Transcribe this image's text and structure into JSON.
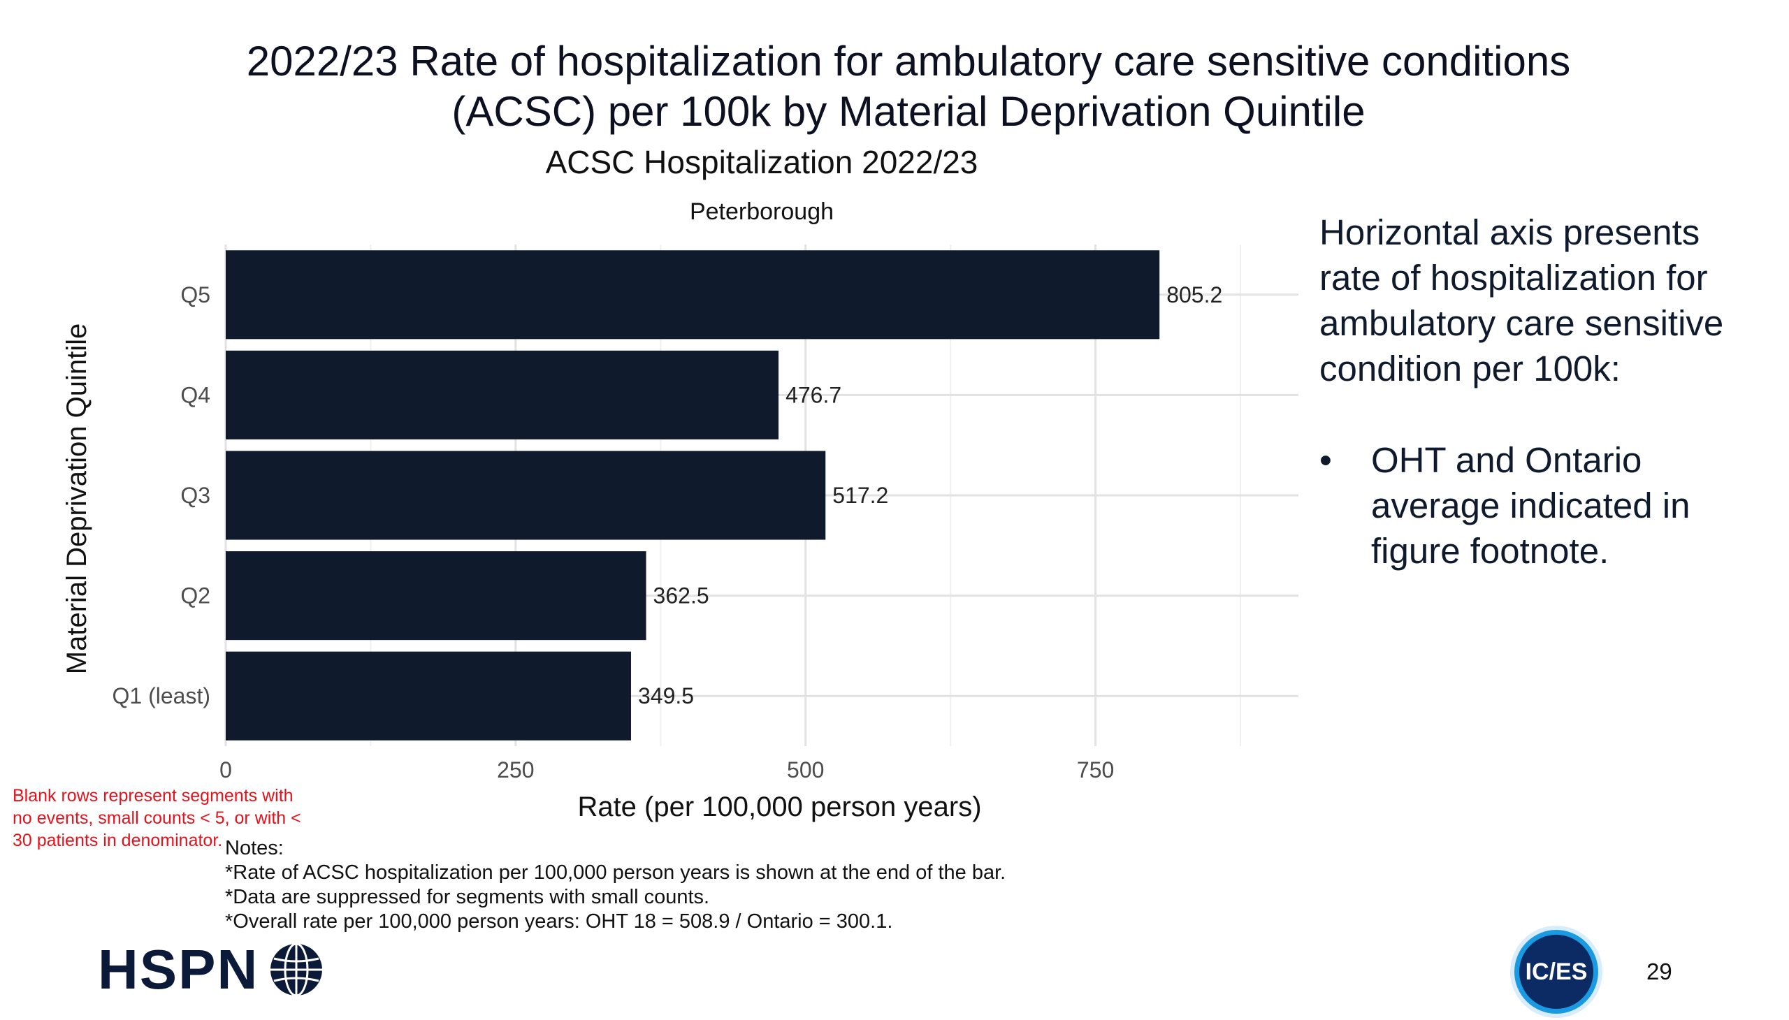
{
  "slide": {
    "title_line1": "2022/23 Rate of hospitalization for ambulatory care sensitive conditions",
    "title_line2": "(ACSC) per 100k by Material Deprivation Quintile",
    "side_text": "Horizontal axis presents rate of hospitalization for ambulatory care sensitive condition per 100k:",
    "bullet_symbol": "•",
    "bullet_text": "OHT and Ontario average indicated in figure footnote.",
    "red_note": "Blank rows represent segments with no events, small counts < 5, or with < 30 patients in denominator.",
    "notes": [
      "Notes:",
      "*Rate of ACSC hospitalization per 100,000 person years is shown at the end of the bar.",
      "*Data are suppressed for segments with small counts.",
      "*Overall rate per 100,000 person years: OHT 18 = 508.9 / Ontario = 300.1."
    ],
    "logo_left": "HSPN",
    "logo_right": "IC/ES",
    "page_number": "29"
  },
  "chart_data": {
    "type": "bar",
    "orientation": "horizontal",
    "title": "ACSC Hospitalization 2022/23",
    "subtitle": "Peterborough",
    "xlabel": "Rate (per 100,000 person years)",
    "ylabel": "Material Deprivation Quintile",
    "categories": [
      "Q5",
      "Q4",
      "Q3",
      "Q2",
      "Q1 (least)"
    ],
    "values": [
      805.2,
      476.7,
      517.2,
      362.5,
      349.5
    ],
    "value_labels": [
      "805.2",
      "476.7",
      "517.2",
      "362.5",
      "349.5"
    ],
    "xlim": [
      0,
      925
    ],
    "xticks": [
      0,
      250,
      500,
      750
    ],
    "xtick_labels": [
      "0",
      "250",
      "500",
      "750"
    ],
    "bar_color": "#0f1a2c",
    "grid": true
  }
}
